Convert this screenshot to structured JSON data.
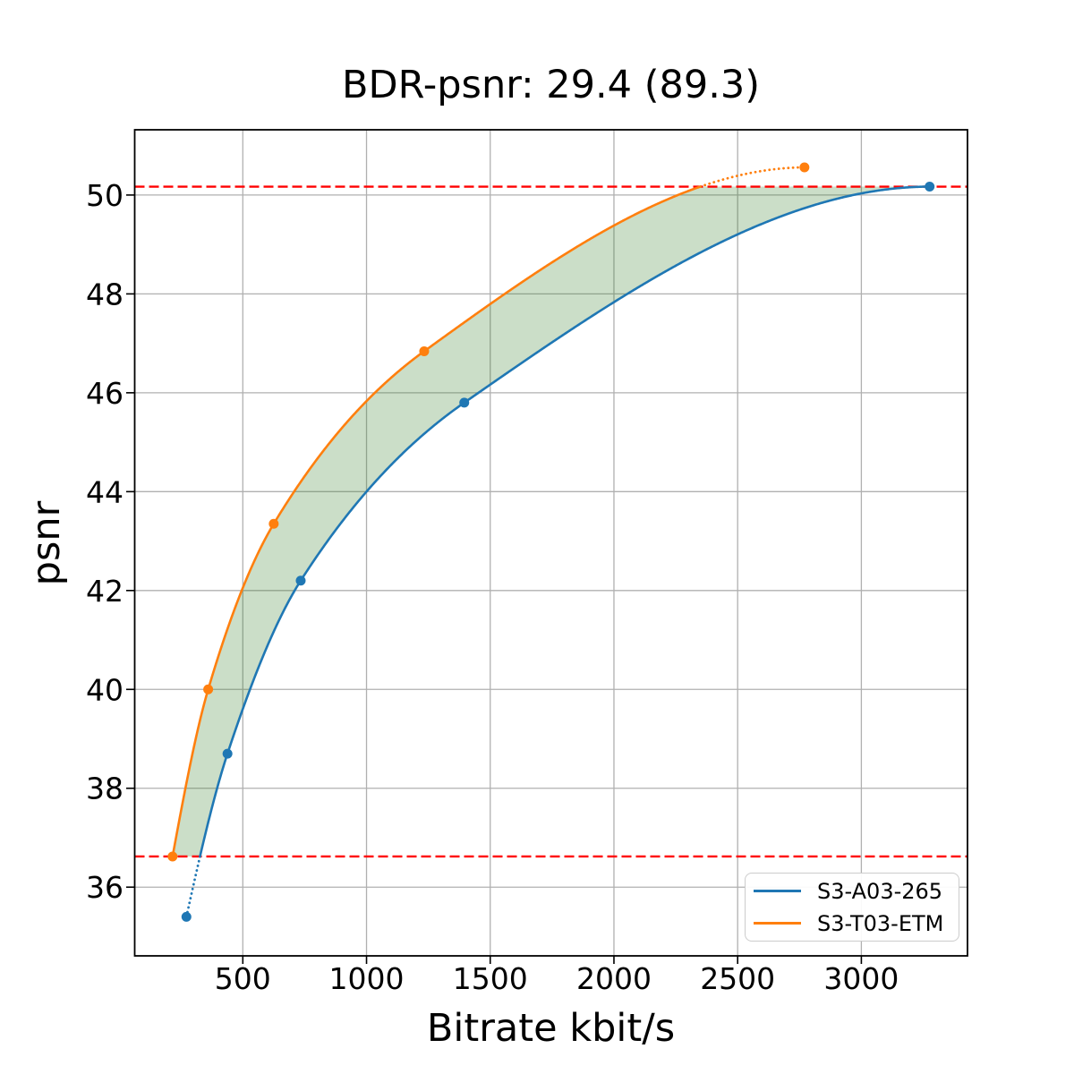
{
  "chart_data": {
    "type": "line",
    "title": "BDR-psnr: 29.4 (89.3)",
    "xlabel": "Bitrate kbit/s",
    "ylabel": "psnr",
    "xlim": [
      63,
      3429
    ],
    "ylim": [
      34.61,
      51.32
    ],
    "xticks": [
      500,
      1000,
      1500,
      2000,
      2500,
      3000
    ],
    "yticks": [
      36,
      38,
      40,
      42,
      44,
      46,
      48,
      50
    ],
    "grid": true,
    "grid_color": "#b0b0b0",
    "series": [
      {
        "name": "S3-A03-265",
        "color": "#1f77b4",
        "marker": "circle",
        "points": [
          [
            272,
            35.4
          ],
          [
            438,
            38.7
          ],
          [
            734,
            42.2
          ],
          [
            1395,
            45.8
          ],
          [
            3276,
            50.17
          ]
        ]
      },
      {
        "name": "S3-T03-ETM",
        "color": "#ff7f0e",
        "marker": "circle",
        "points": [
          [
            216,
            36.62
          ],
          [
            360,
            40.0
          ],
          [
            625,
            43.35
          ],
          [
            1233,
            46.84
          ],
          [
            2770,
            50.56
          ]
        ]
      }
    ],
    "overlap_band": {
      "psnr_low": 36.62,
      "psnr_high": 50.17,
      "line_color": "#ff0000",
      "line_style": "dashed",
      "fill_color": "#2e7d22",
      "fill_opacity": 0.25
    },
    "legend": {
      "position": "lower right"
    }
  }
}
